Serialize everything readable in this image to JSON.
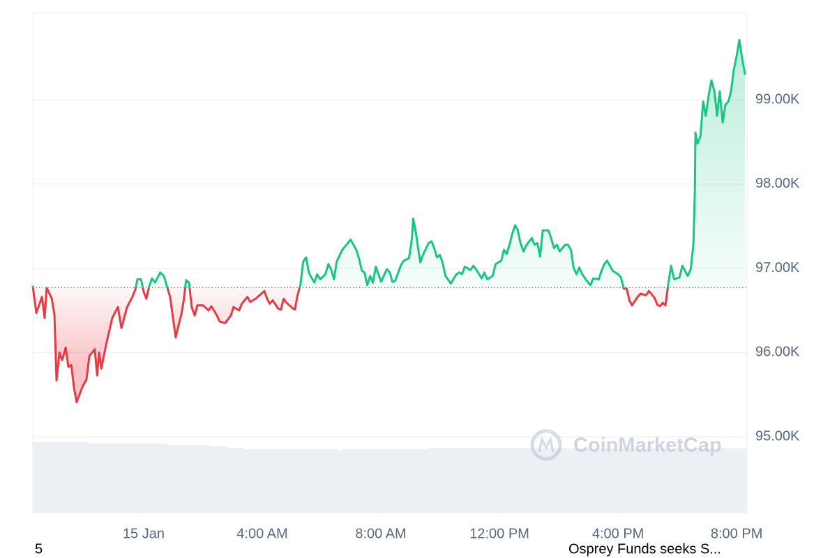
{
  "chart_data": {
    "type": "line",
    "x": [
      -3.74,
      -3.62,
      -3.43,
      -3.34,
      -3.27,
      -3.1,
      -3.01,
      -2.94,
      -2.84,
      -2.75,
      -2.63,
      -2.54,
      -2.44,
      -2.35,
      -2.26,
      -2.07,
      -1.93,
      -1.83,
      -1.65,
      -1.57,
      -1.5,
      -1.43,
      -1.25,
      -1.06,
      -0.87,
      -0.75,
      -0.56,
      -0.38,
      -0.28,
      -0.21,
      -0.09,
      0,
      0.09,
      0.19,
      0.28,
      0.38,
      0.56,
      0.68,
      0.8,
      0.89,
      0.99,
      1.08,
      1.18,
      1.27,
      1.36,
      1.43,
      1.53,
      1.62,
      1.72,
      1.81,
      2.0,
      2.19,
      2.28,
      2.47,
      2.56,
      2.75,
      2.94,
      3.03,
      3.22,
      3.31,
      3.5,
      3.59,
      3.78,
      4.07,
      4.16,
      4.25,
      4.35,
      4.54,
      4.63,
      4.72,
      4.82,
      5.01,
      5.1,
      5.19,
      5.29,
      5.38,
      5.48,
      5.57,
      5.66,
      5.76,
      5.85,
      5.95,
      6.13,
      6.23,
      6.32,
      6.42,
      6.51,
      6.7,
      6.89,
      6.98,
      7.17,
      7.26,
      7.36,
      7.45,
      7.54,
      7.64,
      7.73,
      7.83,
      7.92,
      8.01,
      8.2,
      8.3,
      8.39,
      8.48,
      8.67,
      8.77,
      8.95,
      9.05,
      9.09,
      9.17,
      9.24,
      9.33,
      9.42,
      9.61,
      9.71,
      9.8,
      9.89,
      9.99,
      10.08,
      10.18,
      10.36,
      10.55,
      10.65,
      10.74,
      10.83,
      11.02,
      11.12,
      11.21,
      11.4,
      11.49,
      11.59,
      11.77,
      11.87,
      12.06,
      12.15,
      12.24,
      12.34,
      12.43,
      12.53,
      12.62,
      12.71,
      12.81,
      12.9,
      13.09,
      13.18,
      13.28,
      13.37,
      13.46,
      13.65,
      13.75,
      13.84,
      13.94,
      14.03,
      14.22,
      14.31,
      14.41,
      14.5,
      14.6,
      14.69,
      14.79,
      14.97,
      15.07,
      15.16,
      15.35,
      15.44,
      15.54,
      15.63,
      15.82,
      16.0,
      16.1,
      16.19,
      16.29,
      16.38,
      16.47,
      16.66,
      16.76,
      16.94,
      17.04,
      17.23,
      17.32,
      17.41,
      17.51,
      17.6,
      17.7,
      17.79,
      17.89,
      18.07,
      18.17,
      18.35,
      18.45,
      18.54,
      18.59,
      18.61,
      18.68,
      18.78,
      18.87,
      18.96,
      19.06,
      19.15,
      19.25,
      19.34,
      19.43,
      19.53,
      19.62,
      19.72,
      19.81,
      19.9,
      20.0,
      20.09,
      20.19,
      20.28
    ],
    "values": [
      96785,
      96470,
      96660,
      96410,
      96770,
      96640,
      96450,
      95670,
      96000,
      95910,
      96060,
      95830,
      95850,
      95580,
      95410,
      95590,
      95680,
      95960,
      96040,
      95730,
      96000,
      95810,
      96120,
      96410,
      96540,
      96290,
      96540,
      96660,
      96750,
      96870,
      96870,
      96720,
      96640,
      96790,
      96880,
      96830,
      96950,
      96910,
      96770,
      96660,
      96410,
      96180,
      96330,
      96450,
      96640,
      96860,
      96830,
      96540,
      96440,
      96560,
      96560,
      96500,
      96550,
      96440,
      96370,
      96350,
      96440,
      96540,
      96500,
      96580,
      96660,
      96600,
      96640,
      96730,
      96640,
      96580,
      96620,
      96520,
      96510,
      96640,
      96590,
      96530,
      96510,
      96680,
      96810,
      97080,
      97130,
      96950,
      96890,
      96830,
      96930,
      96870,
      96930,
      97050,
      96990,
      96870,
      97080,
      97220,
      97300,
      97340,
      97220,
      97120,
      96970,
      96950,
      96800,
      96910,
      96830,
      97020,
      96930,
      96840,
      96990,
      96950,
      96840,
      96850,
      97030,
      97090,
      97120,
      97360,
      97590,
      97450,
      97280,
      97070,
      97160,
      97300,
      97320,
      97240,
      97130,
      97160,
      97070,
      96910,
      96820,
      96930,
      96950,
      96930,
      97020,
      96980,
      97030,
      96990,
      96880,
      96950,
      96870,
      96910,
      97050,
      97090,
      97220,
      97170,
      97280,
      97410,
      97510,
      97450,
      97300,
      97200,
      97270,
      97360,
      97280,
      97300,
      97140,
      97450,
      97450,
      97350,
      97240,
      97280,
      97200,
      97280,
      97280,
      97220,
      97010,
      96930,
      97010,
      96930,
      96840,
      96800,
      96880,
      96870,
      96970,
      97050,
      97090,
      96970,
      96930,
      96890,
      96760,
      96760,
      96620,
      96560,
      96660,
      96700,
      96680,
      96730,
      96650,
      96570,
      96550,
      96590,
      96560,
      96830,
      97030,
      96870,
      96890,
      97030,
      96910,
      96990,
      97280,
      97900,
      98610,
      98480,
      98570,
      98980,
      98810,
      99060,
      99230,
      99100,
      98810,
      99100,
      98730,
      98940,
      98980,
      99100,
      99350,
      99520,
      99710,
      99480,
      99310
    ],
    "baseline": 96770,
    "colors": {
      "up": "#16c784",
      "down": "#ea3943"
    },
    "xlim": [
      -3.74,
      20.35
    ],
    "xticks": [
      {
        "value": 0,
        "label": "15 Jan"
      },
      {
        "value": 4,
        "label": "4:00 AM"
      },
      {
        "value": 8,
        "label": "8:00 AM"
      },
      {
        "value": 12,
        "label": "12:00 PM"
      },
      {
        "value": 16,
        "label": "4:00 PM"
      },
      {
        "value": 20,
        "label": "8:00 PM"
      }
    ],
    "ylim": [
      94100,
      100035
    ],
    "yticks": [
      {
        "value": 95000,
        "label": "95.00K"
      },
      {
        "value": 96000,
        "label": "96.00K"
      },
      {
        "value": 97000,
        "label": "97.00K"
      },
      {
        "value": 98000,
        "label": "98.00K"
      },
      {
        "value": 99000,
        "label": "99.00K"
      }
    ],
    "grid": true,
    "watermark": "CoinMarketCap"
  },
  "footer": {
    "left": "5",
    "right": "Osprey Funds seeks S..."
  }
}
